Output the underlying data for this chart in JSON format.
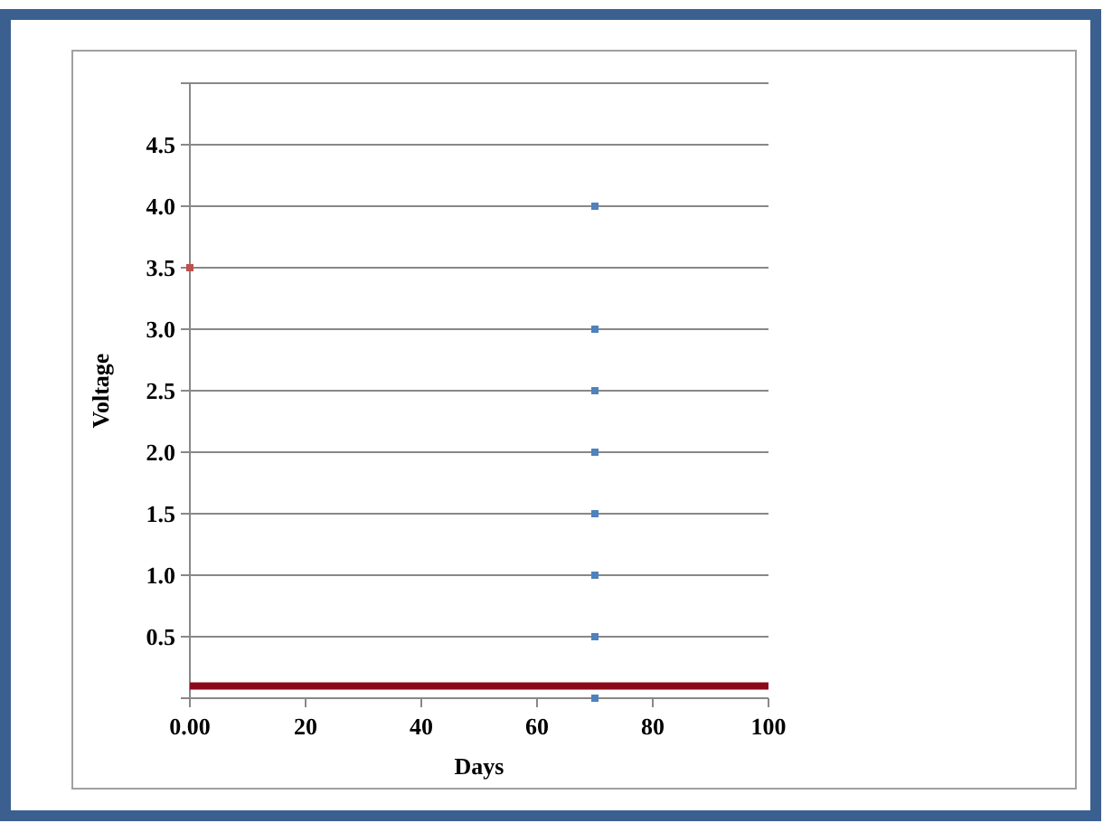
{
  "chart_data": {
    "type": "scatter",
    "xlabel": "Days",
    "ylabel": "Voltage",
    "xlim": [
      0,
      100
    ],
    "ylim": [
      0,
      5
    ],
    "xticks": [
      {
        "value": 0,
        "label": "0.00"
      },
      20,
      40,
      60,
      80,
      100
    ],
    "yticks": [
      {
        "value": 0,
        "label": null
      },
      0.5,
      {
        "value": 1,
        "label": "1.0"
      },
      {
        "value": 1.5,
        "label": "1.5"
      },
      {
        "value": 2,
        "label": "2.0"
      },
      2.5,
      {
        "value": 3,
        "label": "3.0"
      },
      3.5,
      {
        "value": 4,
        "label": "4.0"
      },
      4.5,
      {
        "value": 5,
        "label": null
      }
    ],
    "grid": "y",
    "marker": "square",
    "series": [
      {
        "color": "#4f81bd",
        "x": [
          70,
          70,
          70,
          70,
          70,
          70,
          70,
          70
        ],
        "values": [
          4.0,
          3.0,
          2.5,
          2.0,
          1.5,
          1.0,
          0.5,
          0
        ]
      },
      {
        "color": "#c0504d",
        "x": [
          0
        ],
        "values": [
          3.5
        ]
      },
      {
        "type": "line",
        "color": "#8b0a1a",
        "marker": "none",
        "x": [
          0,
          100
        ],
        "values": [
          0.1,
          0.1
        ]
      }
    ]
  }
}
